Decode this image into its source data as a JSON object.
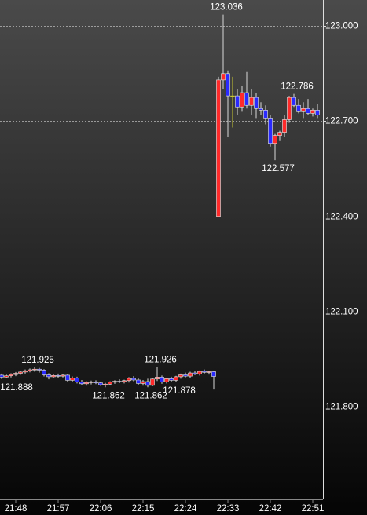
{
  "chart_data": {
    "type": "candlestick",
    "categories": [
      null,
      null,
      null,
      "21:48",
      null,
      null,
      null,
      null,
      null,
      null,
      null,
      null,
      "21:57",
      null,
      null,
      null,
      null,
      null,
      null,
      null,
      null,
      "22:06",
      null,
      null,
      null,
      null,
      null,
      null,
      null,
      null,
      "22:15",
      null,
      null,
      null,
      null,
      null,
      null,
      null,
      null,
      "22:24",
      null,
      null,
      null,
      null,
      null,
      null,
      null,
      null,
      "22:33",
      null,
      null,
      null,
      null,
      null,
      null,
      null,
      null,
      "22:42",
      null,
      null,
      null,
      null,
      null,
      null,
      null,
      null,
      "22:51",
      null
    ],
    "open": [
      121.9,
      121.894,
      121.898,
      121.902,
      121.906,
      121.91,
      121.914,
      121.917,
      121.919,
      121.916,
      121.901,
      121.895,
      121.899,
      121.897,
      121.9,
      121.884,
      121.891,
      121.879,
      121.873,
      121.877,
      121.879,
      121.876,
      121.87,
      121.872,
      121.878,
      121.881,
      121.88,
      121.883,
      121.89,
      121.885,
      121.874,
      121.88,
      121.868,
      121.888,
      121.894,
      121.879,
      121.889,
      121.884,
      121.895,
      121.901,
      121.897,
      121.907,
      121.904,
      121.912,
      121.909,
      121.911,
      122.4,
      122.83,
      122.85,
      122.78,
      122.78,
      122.745,
      122.79,
      122.75,
      122.775,
      122.74,
      122.735,
      122.71,
      122.63,
      122.655,
      122.665,
      122.705,
      122.775,
      122.75,
      122.73,
      122.74,
      122.725,
      122.735
    ],
    "high": [
      121.905,
      121.902,
      121.906,
      121.91,
      121.914,
      121.918,
      121.921,
      121.925,
      121.923,
      121.919,
      121.906,
      121.903,
      121.905,
      121.904,
      121.903,
      121.896,
      121.895,
      121.885,
      121.881,
      121.883,
      121.884,
      121.88,
      121.876,
      121.881,
      121.884,
      121.887,
      121.886,
      121.894,
      121.897,
      121.891,
      121.885,
      121.889,
      121.892,
      121.926,
      121.899,
      121.892,
      121.895,
      121.898,
      121.905,
      121.908,
      121.911,
      121.914,
      121.915,
      121.918,
      121.914,
      121.913,
      122.84,
      123.036,
      122.86,
      122.84,
      122.8,
      122.81,
      122.855,
      122.8,
      122.79,
      122.76,
      122.75,
      122.72,
      122.66,
      122.67,
      122.72,
      122.78,
      122.786,
      122.77,
      122.76,
      122.77,
      122.74,
      122.755
    ],
    "low": [
      121.888,
      121.89,
      121.893,
      121.897,
      121.901,
      121.905,
      121.909,
      121.911,
      121.908,
      121.896,
      121.887,
      121.891,
      121.892,
      121.893,
      121.88,
      121.879,
      121.874,
      121.869,
      121.867,
      121.871,
      121.872,
      121.866,
      121.862,
      121.868,
      121.873,
      121.875,
      121.874,
      121.877,
      121.881,
      121.87,
      121.867,
      121.862,
      121.865,
      121.882,
      121.873,
      121.874,
      121.88,
      121.878,
      121.889,
      121.893,
      121.892,
      121.9,
      121.899,
      121.905,
      121.902,
      121.855,
      122.398,
      122.8,
      122.65,
      122.68,
      122.72,
      122.73,
      122.74,
      122.72,
      122.71,
      122.72,
      122.69,
      122.62,
      122.577,
      122.64,
      122.65,
      122.695,
      122.745,
      122.725,
      122.71,
      122.72,
      122.715,
      122.71
    ],
    "close": [
      121.894,
      121.898,
      121.902,
      121.906,
      121.91,
      121.914,
      121.917,
      121.919,
      121.916,
      121.901,
      121.895,
      121.899,
      121.897,
      121.9,
      121.884,
      121.891,
      121.879,
      121.873,
      121.877,
      121.879,
      121.876,
      121.87,
      121.872,
      121.878,
      121.881,
      121.88,
      121.883,
      121.89,
      121.885,
      121.874,
      121.88,
      121.868,
      121.888,
      121.894,
      121.879,
      121.889,
      121.884,
      121.895,
      121.901,
      121.897,
      121.907,
      121.904,
      121.912,
      121.909,
      121.911,
      121.896,
      122.83,
      122.85,
      122.78,
      122.78,
      122.745,
      122.79,
      122.75,
      122.775,
      122.74,
      122.735,
      122.71,
      122.63,
      122.655,
      122.665,
      122.705,
      122.775,
      122.75,
      122.73,
      122.74,
      122.725,
      122.735,
      122.72
    ],
    "up_color": "#ff2a2a",
    "down_color": "#2a2aff",
    "doji_color": "#c8c832",
    "annotations": [
      123.036,
      122.786,
      122.577,
      121.925,
      121.888,
      121.862,
      121.926,
      121.862,
      121.878
    ],
    "ylim": [
      121.509,
      123.082
    ],
    "yticks": [
      {
        "value": 121.8,
        "label": "121.800"
      },
      {
        "value": 122.1,
        "label": "122.100"
      },
      {
        "value": 122.4,
        "label": "122.400"
      },
      {
        "value": 122.7,
        "label": "122.700"
      },
      {
        "value": 123.0,
        "label": "123.000"
      }
    ],
    "grid": true
  }
}
